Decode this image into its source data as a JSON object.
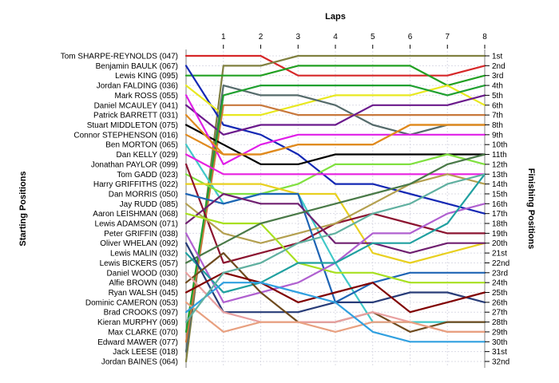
{
  "chart_data": {
    "type": "line",
    "title": "",
    "xlabel": "Laps",
    "ylabel_left": "Starting Positions",
    "ylabel_right": "Finishing Positions",
    "x": [
      0,
      1,
      2,
      3,
      4,
      5,
      6,
      7,
      8
    ],
    "x_tick_labels": [
      "1",
      "2",
      "3",
      "4",
      "5",
      "6",
      "7",
      "8"
    ],
    "y_range": [
      1,
      32
    ],
    "y_inverted": true,
    "grid": true,
    "drivers": [
      "Tom SHARPE-REYNOLDS (047)",
      "Benjamin BAULK (067)",
      "Lewis KING (095)",
      "Jordan FALDING (036)",
      "Mark ROSS (055)",
      "Daniel MCAULEY (041)",
      "Patrick BARRETT (031)",
      "Stuart MIDDLETON (075)",
      "Connor STEPHENSON (016)",
      "Ben MORTON (065)",
      "Dan KELLY (029)",
      "Jonathan PAYLOR (099)",
      "Tom GADD (023)",
      "Harry GRIFFITHS (022)",
      "Dan MORRIS (050)",
      "Jay RUDD (085)",
      "Aaron LEISHMAN (068)",
      "Lewis ADAMSON (071)",
      "Peter GRIFFIN (038)",
      "Oliver WHELAN (092)",
      "Lewis MALIN (032)",
      "Lewis BICKERS (057)",
      "Daniel WOOD (030)",
      "Alfie BROWN (048)",
      "Ryan WALSH (045)",
      "Dominic CAMERON (053)",
      "Brad CROOKS (097)",
      "Kieran MURPHY (069)",
      "Max CLARKE (070)",
      "Edward MAWER (077)",
      "Jack LEESE (018)",
      "Jordan BAINES (064)"
    ],
    "finishing_labels": [
      "1st",
      "2nd",
      "3rd",
      "4th",
      "5th",
      "6th",
      "7th",
      "8th",
      "9th",
      "10th",
      "11th",
      "12th",
      "13th",
      "14th",
      "15th",
      "16th",
      "17th",
      "18th",
      "19th",
      "20th",
      "21st",
      "22nd",
      "23rd",
      "24th",
      "25th",
      "26th",
      "27th",
      "28th",
      "29th",
      "30th",
      "31st",
      "32nd"
    ],
    "series": [
      {
        "color": "#d62728",
        "positions": [
          1,
          1,
          1,
          3,
          3,
          3,
          3,
          3,
          2
        ]
      },
      {
        "color": "#808040",
        "positions": [
          32,
          2,
          2,
          1,
          1,
          1,
          1,
          1,
          1
        ]
      },
      {
        "color": "#22a022",
        "positions": [
          3,
          3,
          3,
          2,
          2,
          2,
          2,
          4,
          3
        ]
      },
      {
        "color": "#1428b4",
        "positions": [
          2,
          8,
          9,
          11,
          14,
          14,
          15,
          16,
          17
        ]
      },
      {
        "color": "#e8e820",
        "positions": [
          4,
          7,
          7,
          6,
          5,
          5,
          5,
          4,
          6
        ]
      },
      {
        "color": "#556b6b",
        "positions": [
          31,
          4,
          5,
          5,
          6,
          8,
          9,
          8,
          8
        ]
      },
      {
        "color": "#c8783c",
        "positions": [
          30,
          6,
          6,
          7,
          7,
          7,
          7,
          7,
          7
        ]
      },
      {
        "color": "#6b1a8c",
        "positions": [
          6,
          9,
          8,
          8,
          8,
          6,
          6,
          6,
          5
        ]
      },
      {
        "color": "#000000",
        "positions": [
          8,
          10,
          12,
          12,
          11,
          11,
          11,
          11,
          11
        ]
      },
      {
        "color": "#e01ee8",
        "positions": [
          5,
          12,
          10,
          9,
          9,
          9,
          9,
          9,
          9
        ]
      },
      {
        "color": "#20a030",
        "positions": [
          29,
          5,
          4,
          4,
          4,
          4,
          4,
          5,
          4
        ]
      },
      {
        "color": "#e08a1e",
        "positions": [
          7,
          11,
          11,
          10,
          10,
          10,
          8,
          8,
          8
        ]
      },
      {
        "color": "#40c8c8",
        "positions": [
          10,
          16,
          15,
          15,
          22,
          28,
          28,
          28,
          28
        ]
      },
      {
        "color": "#e08a1e",
        "positions": [
          9,
          11,
          11,
          10,
          10,
          10,
          8,
          8,
          8
        ]
      },
      {
        "color": "#80e040",
        "positions": [
          13,
          15,
          15,
          14,
          12,
          12,
          12,
          11,
          12
        ]
      },
      {
        "color": "#e8d020",
        "positions": [
          14,
          14,
          14,
          15,
          15,
          21,
          22,
          21,
          20
        ]
      },
      {
        "color": "#e820e0",
        "positions": [
          11,
          13,
          13,
          13,
          13,
          13,
          13,
          13,
          13
        ]
      },
      {
        "color": "#8c1430",
        "positions": [
          12,
          22,
          21,
          20,
          18,
          17,
          18,
          19,
          19
        ]
      },
      {
        "color": "#b4a050",
        "positions": [
          16,
          19,
          20,
          19,
          18,
          16,
          14,
          13,
          14
        ]
      },
      {
        "color": "#1e64b4",
        "positions": [
          15,
          16,
          15,
          15,
          26,
          24,
          23,
          23,
          23
        ]
      },
      {
        "color": "#702070",
        "positions": [
          18,
          15,
          16,
          16,
          20,
          20,
          21,
          20,
          20
        ]
      },
      {
        "color": "#a8e020",
        "positions": [
          17,
          18,
          18,
          22,
          23,
          23,
          24,
          24,
          24
        ]
      },
      {
        "color": "#4a7a48",
        "positions": [
          22,
          20,
          18,
          17,
          16,
          15,
          14,
          12,
          11
        ]
      },
      {
        "color": "#b060d0",
        "positions": [
          19,
          26,
          25,
          24,
          22,
          19,
          19,
          17,
          16
        ]
      },
      {
        "color": "#20a0a0",
        "positions": [
          21,
          25,
          24,
          22,
          22,
          20,
          20,
          18,
          13
        ]
      },
      {
        "color": "#283c78",
        "positions": [
          20,
          27,
          27,
          27,
          26,
          26,
          25,
          25,
          26
        ]
      },
      {
        "color": "#6e4a1e",
        "positions": [
          24,
          21,
          25,
          28,
          28,
          27,
          29,
          28,
          28
        ]
      },
      {
        "color": "#e8a0a0",
        "positions": [
          23,
          27,
          28,
          28,
          28,
          27,
          28,
          29,
          29
        ]
      },
      {
        "color": "#800000",
        "positions": [
          25,
          23,
          24,
          26,
          25,
          24,
          27,
          26,
          25
        ]
      },
      {
        "color": "#e8a080",
        "positions": [
          26,
          29,
          28,
          28,
          29,
          28,
          28,
          29,
          29
        ]
      },
      {
        "color": "#30a0e0",
        "positions": [
          27,
          24,
          24,
          25,
          26,
          29,
          30,
          30,
          30
        ]
      },
      {
        "color": "#60b0a0",
        "positions": [
          28,
          23,
          22,
          20,
          19,
          17,
          16,
          14,
          13
        ]
      }
    ]
  }
}
